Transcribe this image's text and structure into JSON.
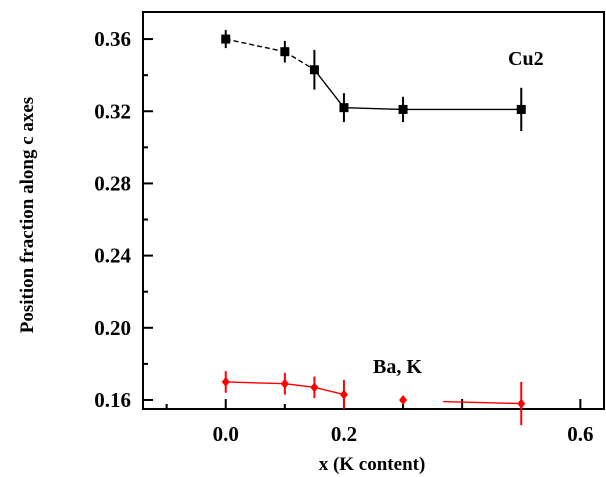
{
  "chart_data": {
    "type": "scatter",
    "xlabel": "x (K content)",
    "ylabel": "Position fraction along c axes",
    "xlim": [
      -0.14,
      0.64
    ],
    "ylim": [
      0.155,
      0.375
    ],
    "x_ticks": [
      "0.0",
      "0.2",
      "0.6"
    ],
    "x_tick_values": [
      0.0,
      0.2,
      0.6
    ],
    "y_ticks": [
      "0.16",
      "0.20",
      "0.24",
      "0.28",
      "0.32",
      "0.36"
    ],
    "y_tick_values": [
      0.16,
      0.2,
      0.24,
      0.28,
      0.32,
      0.36
    ],
    "grid": false,
    "series": [
      {
        "name": "Cu2",
        "color": "#000000",
        "marker": "square",
        "connector": [
          [
            "dashed",
            "dashed",
            "solid",
            "solid",
            "solid"
          ]
        ],
        "x": [
          0.0,
          0.1,
          0.15,
          0.2,
          0.3,
          0.5
        ],
        "y": [
          0.36,
          0.353,
          0.343,
          0.322,
          0.321,
          0.321
        ],
        "yerr": [
          0.005,
          0.006,
          0.011,
          0.008,
          0.007,
          0.012
        ]
      },
      {
        "name": "Ba, K",
        "color": "#ff0000",
        "marker": "diamond",
        "x": [
          0.0,
          0.1,
          0.15,
          0.2,
          0.3,
          0.5
        ],
        "y": [
          0.17,
          0.169,
          0.167,
          0.163,
          0.16,
          0.158
        ],
        "yerr": [
          0.006,
          0.006,
          0.006,
          0.008,
          0.001,
          0.012
        ],
        "segments": [
          [
            0,
            1
          ],
          [
            1,
            2
          ],
          [
            2,
            3
          ],
          [
            4,
            5
          ]
        ]
      }
    ]
  }
}
